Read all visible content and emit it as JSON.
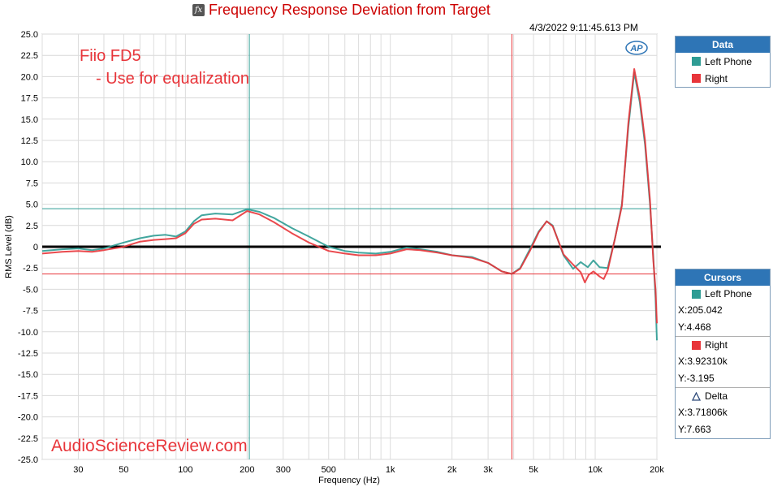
{
  "window": {
    "title": "Frequency Response Deviation from Target",
    "timestamp": "4/3/2022 9:11:45.613 PM",
    "logo": "AP"
  },
  "annotations": {
    "model": "Fiio FD5",
    "note": "- Use for equalization",
    "watermark": "AudioScienceReview.com"
  },
  "legend": {
    "header": "Data",
    "items": [
      {
        "label": "Left Phone",
        "color": "#2e9c94"
      },
      {
        "label": "Right",
        "color": "#e8353a"
      }
    ]
  },
  "cursors": {
    "header": "Cursors",
    "left": {
      "label": "Left Phone",
      "x": "X:205.042",
      "y": "Y:4.468",
      "color": "#2e9c94"
    },
    "right": {
      "label": "Right",
      "x": "X:3.92310k",
      "y": "Y:-3.195",
      "color": "#e8353a"
    },
    "delta": {
      "label": "Delta",
      "x": "X:3.71806k",
      "y": "Y:7.663"
    }
  },
  "chart_data": {
    "type": "line",
    "title": "Frequency Response Deviation from Target",
    "xlabel": "Frequency (Hz)",
    "ylabel": "RMS Level (dB)",
    "xscale": "log",
    "xlim": [
      20,
      20000
    ],
    "ylim": [
      -25,
      25
    ],
    "y_ticks": [
      25,
      22.5,
      20,
      17.5,
      15,
      12.5,
      10,
      7.5,
      5,
      2.5,
      0,
      -2.5,
      -5,
      -7.5,
      -10,
      -12.5,
      -15,
      -17.5,
      -20,
      -22.5,
      -25
    ],
    "y_tick_labels": [
      "25.0",
      "22.5",
      "20.0",
      "17.5",
      "15.0",
      "12.5",
      "10.0",
      "7.5",
      "5.0",
      "2.5",
      "0",
      "-2.5",
      "-5.0",
      "-7.5",
      "-10.0",
      "-12.5",
      "-15.0",
      "-17.5",
      "-20.0",
      "-22.5",
      "-25.0"
    ],
    "x_ticks": [
      30,
      50,
      100,
      200,
      300,
      500,
      1000,
      2000,
      3000,
      5000,
      10000,
      20000
    ],
    "x_tick_labels": [
      "30",
      "50",
      "100",
      "200",
      "300",
      "500",
      "1k",
      "2k",
      "3k",
      "5k",
      "10k",
      "20k"
    ],
    "grid": true,
    "legend_position": "right",
    "reference_line_y": 0,
    "cursor_lines": [
      {
        "axis": "x",
        "value": 205.042,
        "color": "#2e9c94"
      },
      {
        "axis": "y",
        "value": 4.468,
        "color": "#2e9c94"
      },
      {
        "axis": "x",
        "value": 3923.1,
        "color": "#e8353a"
      },
      {
        "axis": "y",
        "value": -3.195,
        "color": "#e8353a"
      }
    ],
    "series": [
      {
        "name": "Left Phone",
        "color": "#2e9c94",
        "x": [
          20,
          25,
          30,
          35,
          40,
          50,
          60,
          70,
          80,
          90,
          100,
          110,
          120,
          140,
          170,
          200,
          230,
          270,
          330,
          400,
          500,
          600,
          700,
          850,
          1000,
          1200,
          1400,
          1700,
          2000,
          2500,
          3000,
          3500,
          3920,
          4300,
          4800,
          5300,
          5800,
          6200,
          7000,
          7800,
          8500,
          9200,
          9800,
          10500,
          11500,
          12500,
          13500,
          14500,
          15500,
          16500,
          17500,
          18500,
          19200,
          19700,
          20000
        ],
        "y": [
          -0.5,
          -0.3,
          -0.2,
          -0.4,
          -0.2,
          0.5,
          1.0,
          1.3,
          1.4,
          1.2,
          1.8,
          3.0,
          3.7,
          3.9,
          3.8,
          4.4,
          4.1,
          3.4,
          2.2,
          1.2,
          0.0,
          -0.5,
          -0.7,
          -0.8,
          -0.6,
          -0.1,
          -0.3,
          -0.6,
          -1.0,
          -1.2,
          -1.9,
          -2.9,
          -3.2,
          -2.5,
          -0.3,
          1.8,
          3.0,
          2.5,
          -1.0,
          -2.6,
          -1.8,
          -2.4,
          -1.6,
          -2.4,
          -2.5,
          1.0,
          5.0,
          14.0,
          20.5,
          17.0,
          12.0,
          5.0,
          -1.0,
          -6.0,
          -11.0
        ]
      },
      {
        "name": "Right",
        "color": "#e8353a",
        "x": [
          20,
          25,
          30,
          35,
          40,
          50,
          60,
          70,
          80,
          90,
          100,
          110,
          120,
          140,
          170,
          200,
          230,
          270,
          330,
          400,
          500,
          600,
          700,
          850,
          1000,
          1200,
          1400,
          1700,
          2000,
          2500,
          3000,
          3500,
          3920,
          4300,
          4800,
          5300,
          5800,
          6200,
          7000,
          7800,
          8500,
          8900,
          9300,
          9800,
          10500,
          11000,
          11500,
          12500,
          13500,
          14500,
          15500,
          16500,
          17500,
          18500,
          19200,
          19700,
          20000
        ],
        "y": [
          -0.8,
          -0.6,
          -0.5,
          -0.6,
          -0.4,
          0.0,
          0.6,
          0.8,
          0.9,
          1.0,
          1.6,
          2.7,
          3.2,
          3.3,
          3.1,
          4.2,
          3.8,
          2.9,
          1.6,
          0.5,
          -0.5,
          -0.8,
          -1.0,
          -1.0,
          -0.8,
          -0.3,
          -0.4,
          -0.7,
          -1.0,
          -1.3,
          -1.9,
          -2.9,
          -3.2,
          -2.6,
          -0.5,
          1.7,
          3.0,
          2.4,
          -0.9,
          -2.1,
          -3.0,
          -4.2,
          -3.3,
          -2.9,
          -3.5,
          -3.8,
          -2.8,
          1.0,
          4.8,
          14.5,
          20.9,
          17.5,
          12.5,
          5.5,
          -1.5,
          -5.0,
          -9.0
        ]
      }
    ]
  }
}
